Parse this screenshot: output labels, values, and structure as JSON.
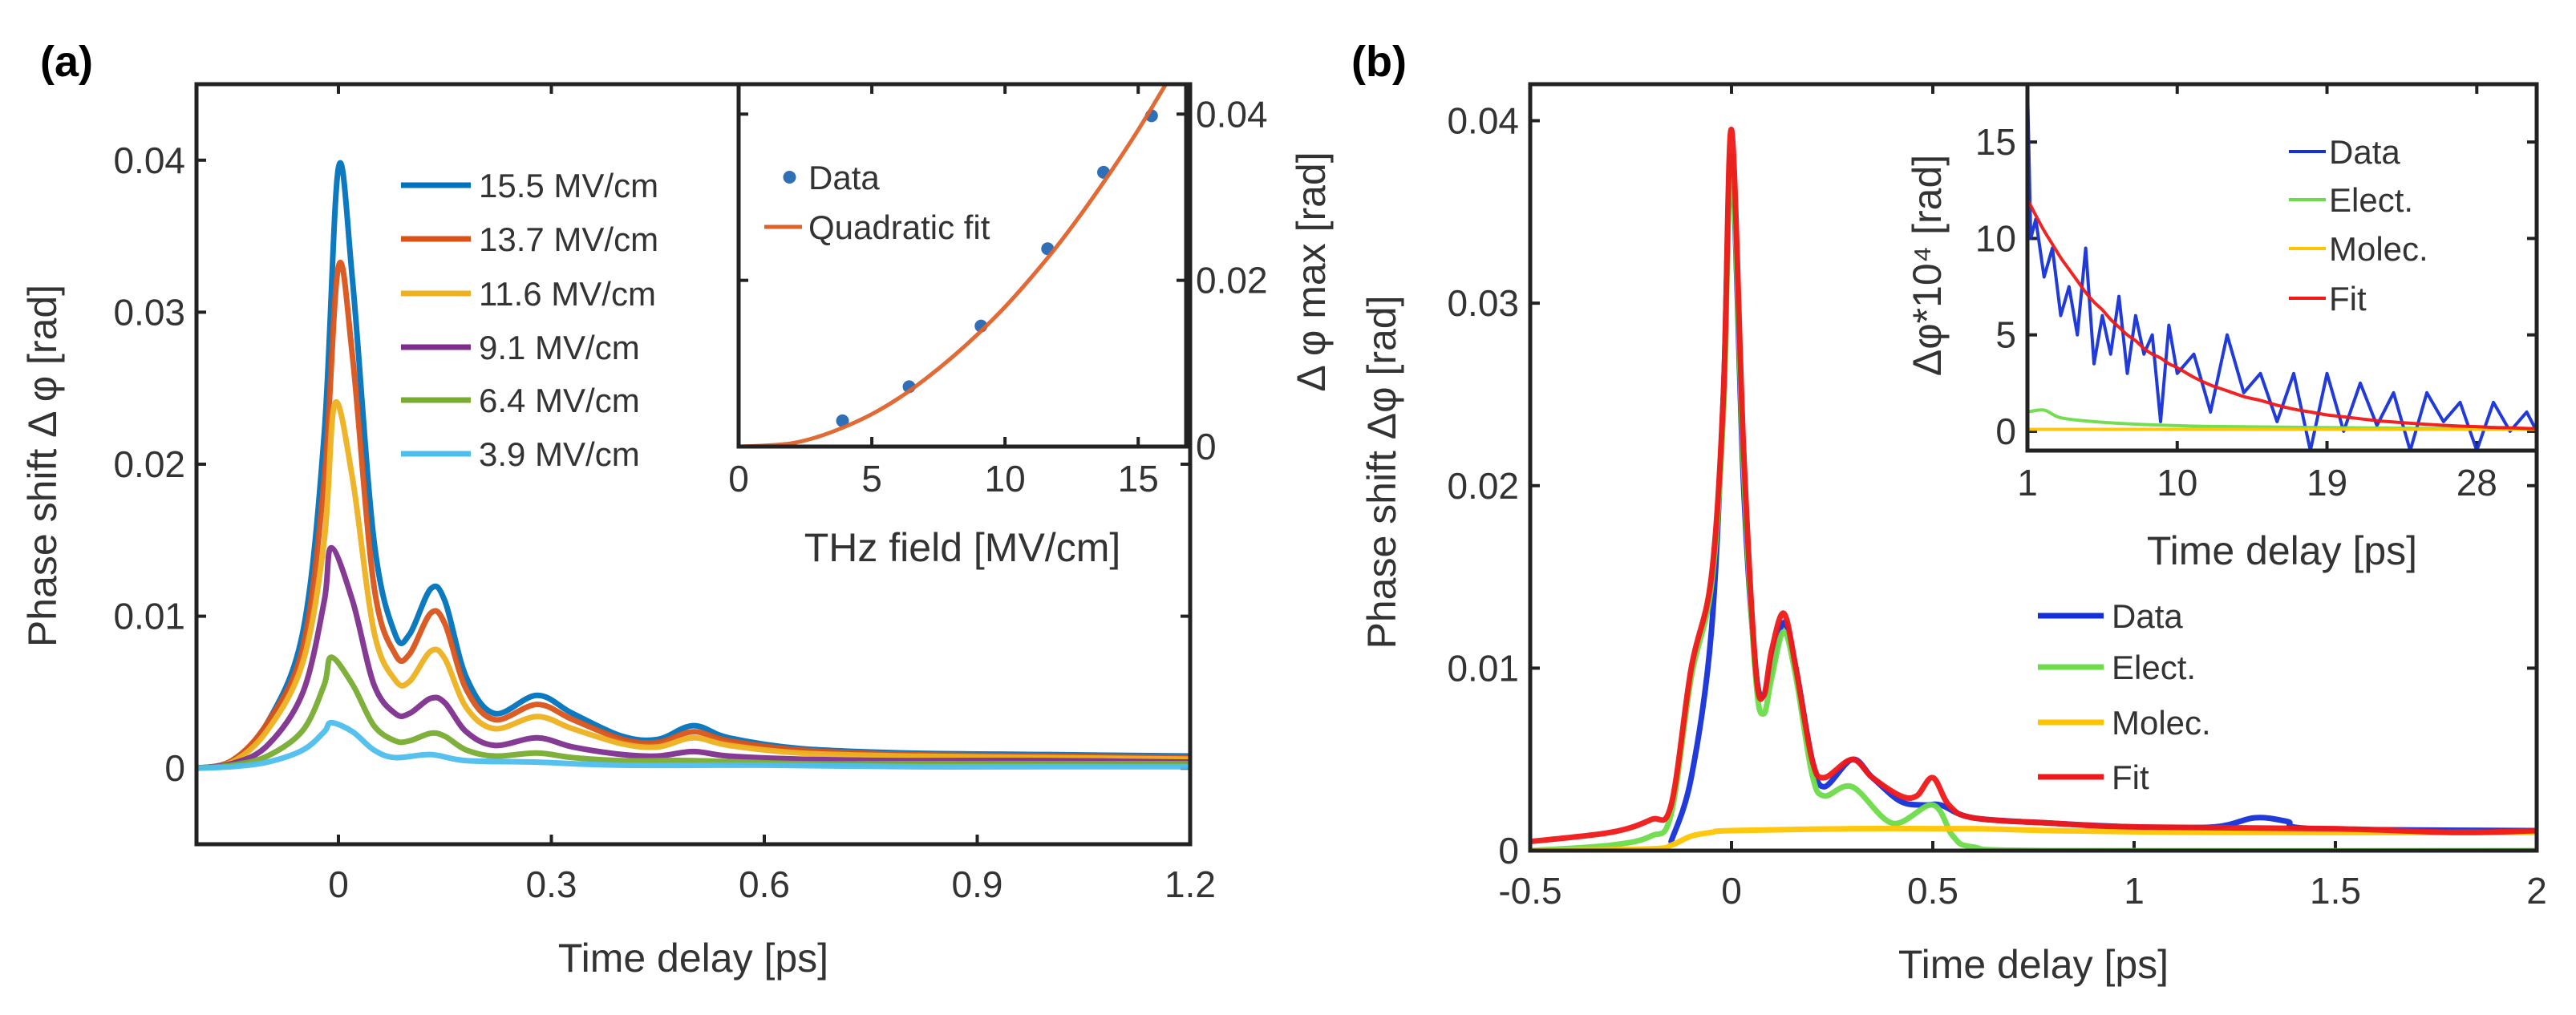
{
  "panels": {
    "a": "(a)",
    "b": "(b)"
  },
  "chart_data": [
    {
      "id": "a-main",
      "type": "line",
      "xlabel": "Time delay [ps]",
      "ylabel": "Phase shift Δ φ [rad]",
      "xlim": [
        -0.2,
        1.2
      ],
      "ylim": [
        -0.005,
        0.045
      ],
      "xticks": [
        0,
        0.3,
        0.6,
        0.9,
        1.2
      ],
      "xticklabels": [
        "0",
        "0.3",
        "0.6",
        "0.9",
        "1.2"
      ],
      "yticks": [
        0,
        0.01,
        0.02,
        0.03,
        0.04
      ],
      "yticklabels": [
        "0",
        "0.01",
        "0.02",
        "0.03",
        "0.04"
      ],
      "legend_position": "top-center",
      "series": [
        {
          "name": "15.5 MV/cm",
          "color": "#0072BD",
          "x": [
            -0.2,
            -0.15,
            -0.1,
            -0.05,
            -0.02,
            0,
            0.02,
            0.05,
            0.08,
            0.1,
            0.13,
            0.15,
            0.18,
            0.22,
            0.28,
            0.33,
            0.4,
            0.45,
            0.5,
            0.55,
            0.65,
            0.8,
            1.0,
            1.2
          ],
          "y": [
            0,
            0.0005,
            0.003,
            0.009,
            0.022,
            0.0395,
            0.032,
            0.015,
            0.0088,
            0.0088,
            0.0118,
            0.011,
            0.006,
            0.0036,
            0.0048,
            0.0036,
            0.0021,
            0.0019,
            0.0028,
            0.002,
            0.0013,
            0.001,
            0.0009,
            0.0008
          ]
        },
        {
          "name": "13.7 MV/cm",
          "color": "#D95319",
          "x": [
            -0.2,
            -0.15,
            -0.1,
            -0.05,
            -0.02,
            0,
            0.02,
            0.05,
            0.08,
            0.1,
            0.13,
            0.15,
            0.18,
            0.22,
            0.28,
            0.33,
            0.4,
            0.45,
            0.5,
            0.55,
            0.65,
            0.8,
            1.0,
            1.2
          ],
          "y": [
            0,
            0.0005,
            0.003,
            0.008,
            0.019,
            0.033,
            0.027,
            0.012,
            0.0075,
            0.0075,
            0.0102,
            0.0095,
            0.0052,
            0.0032,
            0.0042,
            0.0032,
            0.0019,
            0.0017,
            0.0024,
            0.0018,
            0.0012,
            0.0009,
            0.0008,
            0.0007
          ]
        },
        {
          "name": "11.6 MV/cm",
          "color": "#EDB120",
          "x": [
            -0.2,
            -0.15,
            -0.1,
            -0.05,
            -0.02,
            -0.005,
            0.02,
            0.05,
            0.08,
            0.1,
            0.13,
            0.15,
            0.18,
            0.22,
            0.28,
            0.33,
            0.4,
            0.45,
            0.5,
            0.55,
            0.65,
            0.8,
            1.0,
            1.2
          ],
          "y": [
            0,
            0.0004,
            0.0025,
            0.007,
            0.015,
            0.024,
            0.019,
            0.009,
            0.0058,
            0.0057,
            0.0077,
            0.0072,
            0.004,
            0.0026,
            0.0034,
            0.0026,
            0.0016,
            0.0014,
            0.002,
            0.0015,
            0.001,
            0.0008,
            0.0007,
            0.0006
          ]
        },
        {
          "name": "9.1  MV/cm",
          "color": "#7E2F8E",
          "x": [
            -0.2,
            -0.15,
            -0.1,
            -0.05,
            -0.02,
            -0.01,
            0.02,
            0.05,
            0.08,
            0.1,
            0.13,
            0.15,
            0.18,
            0.22,
            0.28,
            0.33,
            0.4,
            0.45,
            0.5,
            0.55,
            0.65,
            0.8,
            1.0,
            1.2
          ],
          "y": [
            0,
            0.0003,
            0.0015,
            0.005,
            0.011,
            0.0145,
            0.011,
            0.0055,
            0.0036,
            0.0036,
            0.0046,
            0.0043,
            0.0024,
            0.0015,
            0.002,
            0.0014,
            0.0009,
            0.0008,
            0.0011,
            0.0008,
            0.0006,
            0.0005,
            0.0005,
            0.0004
          ]
        },
        {
          "name": "6.4  MV/cm",
          "color": "#77AC30",
          "x": [
            -0.2,
            -0.15,
            -0.1,
            -0.05,
            -0.02,
            -0.01,
            0.02,
            0.05,
            0.08,
            0.1,
            0.13,
            0.15,
            0.18,
            0.22,
            0.28,
            0.33,
            0.4,
            0.5,
            0.65,
            0.8,
            1.0,
            1.2
          ],
          "y": [
            0,
            0.0002,
            0.0008,
            0.0025,
            0.0055,
            0.0073,
            0.0055,
            0.0028,
            0.0018,
            0.0018,
            0.0023,
            0.0021,
            0.0012,
            0.0008,
            0.001,
            0.0007,
            0.0005,
            0.0005,
            0.0003,
            0.0003,
            0.0003,
            0.0003
          ]
        },
        {
          "name": "3.9  MV/cm",
          "color": "#4DBEEE",
          "x": [
            -0.2,
            -0.15,
            -0.1,
            -0.05,
            -0.02,
            -0.01,
            0.02,
            0.05,
            0.08,
            0.13,
            0.18,
            0.28,
            0.4,
            0.6,
            0.8,
            1.0,
            1.2
          ],
          "y": [
            0,
            0.0001,
            0.0004,
            0.0012,
            0.0024,
            0.003,
            0.0024,
            0.0012,
            0.0007,
            0.0009,
            0.0005,
            0.0004,
            0.0002,
            0.0002,
            0.0001,
            0.0001,
            0.0001
          ]
        }
      ]
    },
    {
      "id": "a-inset",
      "type": "scatter",
      "xlabel": "THz field [MV/cm]",
      "ylabel": "Δ φ max [rad]",
      "xlim": [
        0,
        16.8
      ],
      "ylim": [
        0,
        0.0436
      ],
      "xticks": [
        0,
        5,
        10,
        15
      ],
      "xticklabels": [
        "0",
        "5",
        "10",
        "15"
      ],
      "yticks": [
        0,
        0.02,
        0.04
      ],
      "yticklabels": [
        "0",
        "0.02",
        "0.04"
      ],
      "legend_position": "top-left",
      "series": [
        {
          "name": "Data",
          "kind": "scatter",
          "color": "#2f6fb8",
          "x": [
            3.9,
            6.4,
            9.1,
            11.6,
            13.7,
            15.5
          ],
          "y": [
            0.0031,
            0.0072,
            0.0145,
            0.0238,
            0.033,
            0.0398
          ]
        },
        {
          "name": "Quadratic fit",
          "kind": "line",
          "color": "#E0622A",
          "x": [
            0,
            1,
            2,
            3,
            4,
            5,
            6,
            7,
            8,
            9,
            10,
            11,
            12,
            13,
            14,
            15,
            16,
            16.8
          ],
          "y": [
            0,
            0.00012,
            0.0004,
            0.0012,
            0.0024,
            0.0039,
            0.0058,
            0.0081,
            0.0107,
            0.0136,
            0.0168,
            0.0204,
            0.0243,
            0.0286,
            0.0332,
            0.0381,
            0.0434,
            0.0478
          ]
        }
      ]
    },
    {
      "id": "b-main",
      "type": "line",
      "xlabel": "Time delay [ps]",
      "ylabel": "Phase shift Δφ [rad]",
      "xlim": [
        -0.5,
        2
      ],
      "ylim": [
        0,
        0.042
      ],
      "xticks": [
        -0.5,
        0,
        0.5,
        1,
        1.5,
        2
      ],
      "xticklabels": [
        "-0.5",
        "0",
        "0.5",
        "1",
        "1.5",
        "2"
      ],
      "yticks": [
        0,
        0.01,
        0.02,
        0.03,
        0.04
      ],
      "yticklabels": [
        "0",
        "0.01",
        "0.02",
        "0.03",
        "0.04"
      ],
      "legend_position": "center-right",
      "series": [
        {
          "name": "Data",
          "color": "#1530d8",
          "x": [
            -0.15,
            -0.1,
            -0.05,
            -0.02,
            0,
            0.03,
            0.06,
            0.08,
            0.1,
            0.13,
            0.16,
            0.2,
            0.23,
            0.3,
            0.35,
            0.42,
            0.48,
            0.52,
            0.6,
            0.8,
            1.0,
            1.2,
            1.3,
            1.38,
            1.45,
            2
          ],
          "y": [
            0.0005,
            0.004,
            0.012,
            0.025,
            0.038,
            0.02,
            0.01,
            0.0085,
            0.01,
            0.0125,
            0.01,
            0.005,
            0.0035,
            0.005,
            0.004,
            0.0027,
            0.0025,
            0.0025,
            0.0018,
            0.0015,
            0.0013,
            0.0013,
            0.0018,
            0.0016,
            0.0012,
            0.0011
          ]
        },
        {
          "name": "Elect.",
          "color": "#6ddc4a",
          "x": [
            -0.5,
            -0.3,
            -0.2,
            -0.15,
            -0.1,
            -0.05,
            -0.02,
            0,
            0.03,
            0.06,
            0.08,
            0.1,
            0.13,
            0.16,
            0.2,
            0.23,
            0.3,
            0.4,
            0.5,
            0.55,
            0.6,
            0.8,
            2
          ],
          "y": [
            0,
            0.0003,
            0.0008,
            0.002,
            0.0095,
            0.0145,
            0.024,
            0.038,
            0.021,
            0.0095,
            0.0075,
            0.0095,
            0.012,
            0.0095,
            0.0042,
            0.003,
            0.0035,
            0.0015,
            0.0025,
            0.0008,
            0.0002,
            0,
            0
          ]
        },
        {
          "name": "Molec.",
          "color": "#ffc400",
          "x": [
            -0.5,
            -0.2,
            -0.15,
            -0.1,
            -0.05,
            0,
            0.3,
            0.6,
            0.8,
            1.2,
            2
          ],
          "y": [
            0,
            0.0001,
            0.0003,
            0.0008,
            0.001,
            0.0011,
            0.0012,
            0.0012,
            0.0011,
            0.001,
            0.001
          ]
        },
        {
          "name": "Fit",
          "color": "#f01818",
          "x": [
            -0.5,
            -0.3,
            -0.2,
            -0.15,
            -0.1,
            -0.05,
            -0.02,
            0,
            0.03,
            0.06,
            0.08,
            0.1,
            0.13,
            0.16,
            0.2,
            0.23,
            0.3,
            0.35,
            0.42,
            0.46,
            0.5,
            0.54,
            0.6,
            0.8,
            1.0,
            1.5,
            1.8,
            2
          ],
          "y": [
            0.0005,
            0.001,
            0.0017,
            0.0025,
            0.01,
            0.015,
            0.025,
            0.0395,
            0.022,
            0.01,
            0.0085,
            0.011,
            0.013,
            0.01,
            0.005,
            0.004,
            0.005,
            0.004,
            0.003,
            0.003,
            0.004,
            0.0025,
            0.0018,
            0.0015,
            0.0013,
            0.0012,
            0.001,
            0.0011
          ]
        }
      ]
    },
    {
      "id": "b-inset",
      "type": "line",
      "xlabel": "Time delay [ps]",
      "ylabel": "Δφ*10⁴ [rad]",
      "xlim": [
        1,
        31.6
      ],
      "ylim": [
        -1,
        18
      ],
      "xticks": [
        1,
        10,
        19,
        28
      ],
      "xticklabels": [
        "1",
        "10",
        "19",
        "28"
      ],
      "yticks": [
        0,
        5,
        10,
        15
      ],
      "yticklabels": [
        "0",
        "5",
        "10",
        "15"
      ],
      "legend_position": "top-right",
      "series": [
        {
          "name": "Data",
          "color": "#1530d8",
          "noisy": true,
          "x": [
            1,
            1.2,
            1.5,
            2,
            2.5,
            3,
            3.5,
            4,
            4.5,
            5,
            5.5,
            6,
            6.5,
            7,
            7.5,
            8,
            8.5,
            9,
            9.5,
            10,
            11,
            12,
            13,
            14,
            15,
            16,
            17,
            18,
            19,
            20,
            21,
            22,
            23,
            24,
            25,
            26,
            27,
            28,
            29,
            30,
            31,
            31.6
          ],
          "y": [
            18,
            10,
            11,
            8,
            9.5,
            6,
            7.5,
            5,
            9.5,
            3.5,
            6,
            4,
            7,
            3,
            6,
            4,
            5,
            0.5,
            5.5,
            3,
            4,
            1,
            5,
            2,
            3,
            0.5,
            3,
            -1,
            3,
            0,
            2.5,
            0.3,
            2,
            -1,
            2,
            0.5,
            1.5,
            -1,
            1.5,
            0,
            1,
            0
          ]
        },
        {
          "name": "Elect.",
          "color": "#6ddc4a",
          "x": [
            1,
            2,
            3,
            5,
            8,
            12,
            18,
            25,
            31.6
          ],
          "y": [
            1,
            1.1,
            0.7,
            0.5,
            0.35,
            0.25,
            0.2,
            0.15,
            0.1
          ]
        },
        {
          "name": "Molec.",
          "color": "#ffc400",
          "x": [
            1,
            31.6
          ],
          "y": [
            0.1,
            0.1
          ]
        },
        {
          "name": "Fit",
          "color": "#f01818",
          "x": [
            1,
            1.2,
            1.5,
            2,
            2.5,
            3,
            3.5,
            4,
            4.5,
            5,
            5.5,
            6,
            6.5,
            7,
            7.5,
            8,
            8.5,
            9,
            9.5,
            10,
            11,
            12,
            13,
            14,
            15,
            16,
            17,
            18,
            19,
            20,
            21,
            22,
            23,
            24,
            25,
            26,
            27,
            28,
            29,
            30,
            31,
            31.6
          ],
          "y": [
            12,
            11.7,
            11.2,
            10.4,
            9.7,
            9.0,
            8.4,
            7.8,
            7.2,
            6.7,
            6.3,
            5.8,
            5.4,
            5.0,
            4.7,
            4.3,
            4.0,
            3.8,
            3.5,
            3.3,
            2.8,
            2.4,
            2.1,
            1.8,
            1.6,
            1.35,
            1.15,
            1.0,
            0.85,
            0.75,
            0.65,
            0.55,
            0.48,
            0.42,
            0.36,
            0.31,
            0.27,
            0.24,
            0.2,
            0.18,
            0.15,
            0.14
          ]
        }
      ]
    }
  ]
}
